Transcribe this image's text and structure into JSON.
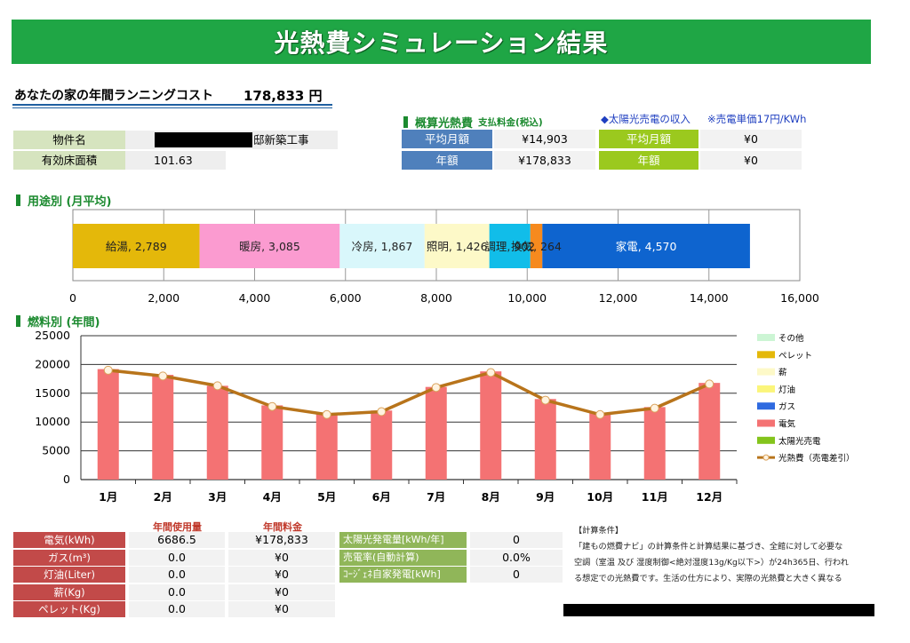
{
  "title": "光熱費シミュレーション結果",
  "running_cost": {
    "label": "あなたの家の年間ランニングコスト",
    "value": "178,833 円"
  },
  "property": {
    "name_label": "物件名",
    "name_value": "邸新築工事",
    "area_label": "有効床面積",
    "area_value": "101.63"
  },
  "estimate": {
    "title": "概算光熱費",
    "subtitle": "支払料金(税込)",
    "monthly_label": "平均月額",
    "monthly_value": "¥14,903",
    "annual_label": "年額",
    "annual_value": "¥178,833"
  },
  "solar": {
    "title": "◆太陽光売電の収入",
    "note": "※売電単価17円/KWh",
    "monthly_label": "平均月額",
    "monthly_value": "¥0",
    "annual_label": "年額",
    "annual_value": "¥0"
  },
  "usage_section": {
    "title": "用途別 (月平均)"
  },
  "fuel_section": {
    "title": "燃料別 (年間)"
  },
  "colors": {
    "brand_green": "#1fa645",
    "section_green": "#1b8a2f",
    "electric_bar": "#f47273",
    "cost_line": "#b8741b"
  },
  "chart_data": [
    {
      "type": "bar",
      "orientation": "horizontal-stacked",
      "series": [
        {
          "name": "給湯",
          "value": 2789,
          "label": "給湯, 2,789",
          "color": "#e4b80a"
        },
        {
          "name": "暖房",
          "value": 3085,
          "label": "暖房, 3,085",
          "color": "#fb9bd0"
        },
        {
          "name": "冷房",
          "value": 1867,
          "label": "冷房, 1,867",
          "color": "#d9f7fb"
        },
        {
          "name": "照明",
          "value": 1426,
          "label": "照明, 1,426",
          "color": "#fdf9c8"
        },
        {
          "name": "調理",
          "value": 902,
          "label": "調理, 902",
          "color": "#11bde9"
        },
        {
          "name": "換気",
          "value": 264,
          "label": "換気, 264",
          "color": "#f68a1e"
        },
        {
          "name": "家電",
          "value": 4570,
          "label": "家電, 4,570",
          "color": "#0e64cf"
        }
      ],
      "xlim": [
        0,
        16000
      ],
      "xticks": [
        "0",
        "2,000",
        "4,000",
        "6,000",
        "8,000",
        "10,000",
        "12,000",
        "14,000",
        "16,000"
      ],
      "grid": true
    },
    {
      "type": "bar",
      "categories": [
        "1月",
        "2月",
        "3月",
        "4月",
        "5月",
        "6月",
        "7月",
        "8月",
        "9月",
        "10月",
        "11月",
        "12月"
      ],
      "series": [
        {
          "name": "電気",
          "kind": "bar",
          "color": "#f47273",
          "values": [
            19200,
            18200,
            16300,
            12900,
            11400,
            12000,
            16100,
            18800,
            14000,
            11600,
            12600,
            16800
          ]
        },
        {
          "name": "光熱費（売電差引）",
          "kind": "line",
          "color": "#b8741b",
          "values": [
            19000,
            18000,
            16300,
            12700,
            11300,
            11800,
            16000,
            18600,
            13800,
            11300,
            12400,
            16600
          ]
        }
      ],
      "legend": [
        {
          "name": "その他",
          "color": "#ccf5d4"
        },
        {
          "name": "ペレット",
          "color": "#e4b80a"
        },
        {
          "name": "薪",
          "color": "#fdf9c8"
        },
        {
          "name": "灯油",
          "color": "#fbf57b"
        },
        {
          "name": "ガス",
          "color": "#2f6ae0"
        },
        {
          "name": "電気",
          "color": "#f47273"
        },
        {
          "name": "太陽光売電",
          "color": "#84c41c"
        },
        {
          "name": "光熱費（売電差引）",
          "color": "#b8741b"
        }
      ],
      "legend_position": "right",
      "ylim": [
        0,
        25000
      ],
      "yticks": [
        "0",
        "5000",
        "10000",
        "15000",
        "20000",
        "25000"
      ],
      "grid": true
    }
  ],
  "annual_table": {
    "col_usage": "年間使用量",
    "col_cost": "年間料金",
    "rows": [
      {
        "label": "電気(kWh)",
        "usage": "6686.5",
        "cost": "¥178,833"
      },
      {
        "label": "ガス(m³)",
        "usage": "0.0",
        "cost": "¥0"
      },
      {
        "label": "灯油(Liter)",
        "usage": "0.0",
        "cost": "¥0"
      },
      {
        "label": "薪(Kg)",
        "usage": "0.0",
        "cost": "¥0"
      },
      {
        "label": "ペレット(Kg)",
        "usage": "0.0",
        "cost": "¥0"
      }
    ]
  },
  "solar_table": {
    "rows": [
      {
        "label": "太陽光発電量[kWh/年]",
        "value": "0"
      },
      {
        "label": "売電率(自動計算)",
        "value": "0.0%"
      },
      {
        "label": "ｺｰｼﾞｪﾈ自家発電[kWh]",
        "value": "0"
      }
    ]
  },
  "conditions": {
    "title": "【計算条件】",
    "line1": "「建もの燃費ナビ」の計算条件と計算結果に基づき、全館に対して必要な",
    "line2": "空調（室温 及び 湿度制御<絶対湿度13g/Kg以下>）が24h365日、行われ",
    "line3": "る想定での光熱費です。生活の仕方により、実際の光熱費と大きく異なる"
  }
}
